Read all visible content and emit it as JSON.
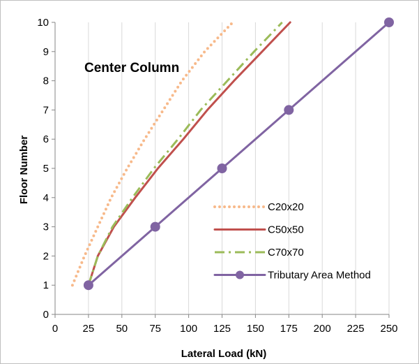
{
  "chart_data": {
    "type": "line",
    "title": "",
    "annotation": "Center Column",
    "xlabel": "Lateral Load (kN)",
    "ylabel": "Floor Number",
    "xlim": [
      0,
      250
    ],
    "ylim": [
      0,
      10
    ],
    "x_ticks": [
      0,
      25,
      50,
      75,
      100,
      125,
      150,
      175,
      200,
      225,
      250
    ],
    "y_ticks": [
      0,
      1,
      2,
      3,
      4,
      5,
      6,
      7,
      8,
      9,
      10
    ],
    "grid": "vertical",
    "legend_position": "lower-right",
    "series": [
      {
        "name": "C20x20",
        "color": "#f7b98a",
        "style": "dotted",
        "points": [
          [
            13,
            1
          ],
          [
            22,
            2
          ],
          [
            32,
            3
          ],
          [
            42,
            4
          ],
          [
            54,
            5
          ],
          [
            67,
            6
          ],
          [
            81,
            7
          ],
          [
            95,
            8
          ],
          [
            112,
            9
          ],
          [
            133,
            10
          ]
        ]
      },
      {
        "name": "C50x50",
        "color": "#c0504d",
        "style": "solid",
        "points": [
          [
            25,
            1
          ],
          [
            32,
            2
          ],
          [
            44,
            3
          ],
          [
            60,
            4
          ],
          [
            77,
            5
          ],
          [
            96,
            6
          ],
          [
            114,
            7
          ],
          [
            134,
            8
          ],
          [
            155,
            9
          ],
          [
            176,
            10
          ]
        ]
      },
      {
        "name": "C70x70",
        "color": "#9bbb59",
        "style": "dash-dot",
        "points": [
          [
            25,
            1
          ],
          [
            32,
            2
          ],
          [
            43,
            3
          ],
          [
            58,
            4
          ],
          [
            74,
            5
          ],
          [
            92,
            6
          ],
          [
            109,
            7
          ],
          [
            129,
            8
          ],
          [
            149,
            9
          ],
          [
            170,
            10
          ]
        ]
      },
      {
        "name": "Tributary Area Method",
        "color": "#8064a2",
        "style": "solid-marker",
        "points": [
          [
            25,
            1
          ],
          [
            75,
            3
          ],
          [
            125,
            5
          ],
          [
            175,
            7
          ],
          [
            250,
            10
          ]
        ]
      }
    ]
  }
}
